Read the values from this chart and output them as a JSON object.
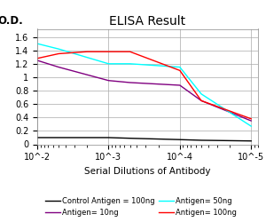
{
  "title": "ELISA Result",
  "ylabel": "O.D.",
  "xlabel": "Serial Dilutions of Antibody",
  "xlim": [
    0.01,
    8e-06
  ],
  "ylim": [
    0,
    1.72
  ],
  "yticks": [
    0,
    0.2,
    0.4,
    0.6,
    0.8,
    1.0,
    1.2,
    1.4,
    1.6
  ],
  "ytick_labels": [
    "0",
    "0.2",
    "0.4",
    "0.6",
    "0.8",
    "1",
    "1.2",
    "1.4",
    "1.6"
  ],
  "xticks": [
    0.01,
    0.001,
    0.0001,
    1e-05
  ],
  "xtick_labels": [
    "10^-2",
    "10^-3",
    "10^-4",
    "10^-5"
  ],
  "lines": [
    {
      "label": "Control Antigen = 100ng",
      "color": "black",
      "x": [
        0.01,
        0.005,
        0.001,
        0.0005,
        0.0001,
        5e-05,
        1e-05
      ],
      "y": [
        0.1,
        0.1,
        0.1,
        0.09,
        0.07,
        0.06,
        0.05
      ]
    },
    {
      "label": "Antigen= 10ng",
      "color": "purple",
      "x": [
        0.01,
        0.005,
        0.001,
        0.0005,
        0.0001,
        5e-05,
        1e-05
      ],
      "y": [
        1.25,
        1.15,
        0.95,
        0.92,
        0.88,
        0.65,
        0.35
      ]
    },
    {
      "label": "Antigen= 50ng",
      "color": "cyan",
      "x": [
        0.01,
        0.005,
        0.001,
        0.0005,
        0.0001,
        5e-05,
        1e-05
      ],
      "y": [
        1.5,
        1.42,
        1.2,
        1.2,
        1.15,
        0.75,
        0.27
      ]
    },
    {
      "label": "Antigen= 100ng",
      "color": "red",
      "x": [
        0.01,
        0.005,
        0.002,
        0.001,
        0.0005,
        0.0001,
        5e-05,
        1e-05
      ],
      "y": [
        1.28,
        1.35,
        1.38,
        1.38,
        1.38,
        1.1,
        0.65,
        0.38
      ]
    }
  ],
  "grid_color": "#aaaaaa",
  "background_color": "#ffffff",
  "title_fontsize": 10,
  "label_fontsize": 7.5,
  "tick_fontsize": 7,
  "legend_fontsize": 6.0
}
